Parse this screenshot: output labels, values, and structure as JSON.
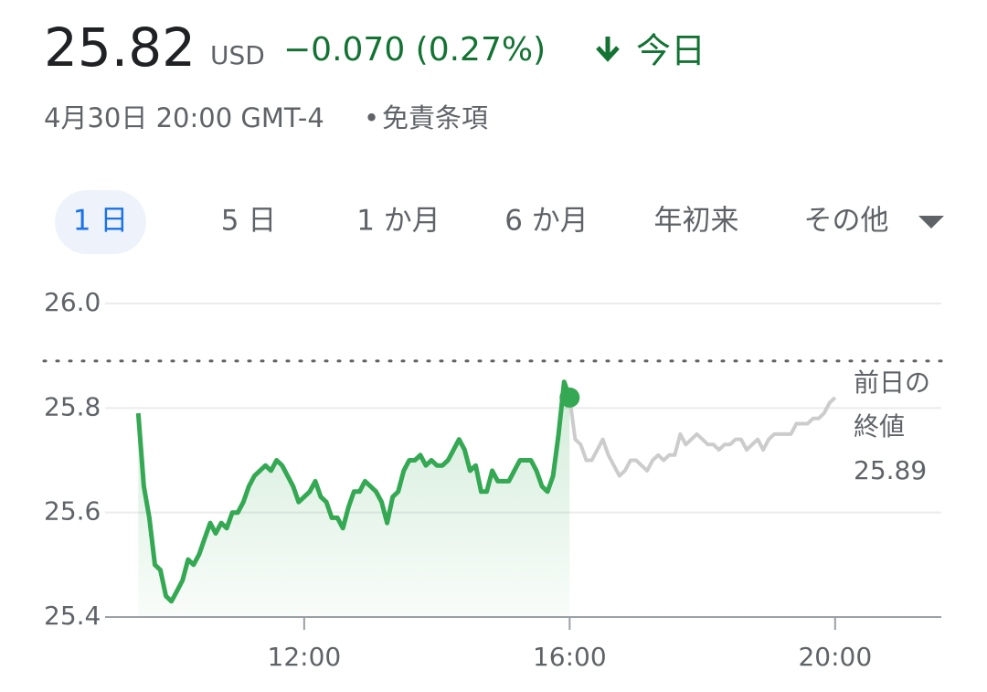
{
  "header": {
    "price": "25.82",
    "currency": "USD",
    "change": "−0.070 (0.27%)",
    "period": "今日",
    "date": "4月30日 20:00 GMT-4",
    "separator": "•",
    "disclaimer": "免責条項"
  },
  "tabs": {
    "items": [
      "1 日",
      "5 日",
      "1 か月",
      "6 か月",
      "年初来",
      "その他"
    ],
    "selected": 0
  },
  "chart_data": {
    "type": "line",
    "series": [
      {
        "name": "regular",
        "color": "#34a853",
        "x": [
          570,
          575,
          580,
          585,
          590,
          595,
          600,
          605,
          610,
          615,
          620,
          625,
          630,
          635,
          640,
          645,
          650,
          655,
          660,
          665,
          670,
          675,
          680,
          685,
          690,
          695,
          700,
          705,
          710,
          715,
          720,
          725,
          730,
          735,
          740,
          745,
          750,
          755,
          760,
          765,
          770,
          775,
          780,
          785,
          790,
          795,
          800,
          805,
          810,
          815,
          820,
          825,
          830,
          835,
          840,
          845,
          850,
          855,
          860,
          865,
          870,
          875,
          880,
          885,
          890,
          895,
          900,
          905,
          910,
          915,
          920,
          925,
          930,
          935,
          940,
          945,
          950,
          955,
          960
        ],
        "values": [
          25.79,
          25.65,
          25.59,
          25.5,
          25.49,
          25.44,
          25.43,
          25.45,
          25.47,
          25.51,
          25.5,
          25.52,
          25.55,
          25.58,
          25.56,
          25.58,
          25.57,
          25.6,
          25.6,
          25.62,
          25.65,
          25.67,
          25.68,
          25.69,
          25.68,
          25.7,
          25.69,
          25.67,
          25.65,
          25.62,
          25.63,
          25.64,
          25.66,
          25.63,
          25.62,
          25.59,
          25.59,
          25.57,
          25.61,
          25.64,
          25.64,
          25.66,
          25.65,
          25.64,
          25.62,
          25.58,
          25.63,
          25.64,
          25.68,
          25.7,
          25.7,
          25.71,
          25.69,
          25.7,
          25.69,
          25.69,
          25.7,
          25.72,
          25.74,
          25.72,
          25.68,
          25.69,
          25.64,
          25.64,
          25.68,
          25.66,
          25.66,
          25.66,
          25.68,
          25.7,
          25.7,
          25.7,
          25.68,
          25.65,
          25.64,
          25.67,
          25.75,
          25.85,
          25.82
        ]
      },
      {
        "name": "after-hours",
        "color": "#cccccc",
        "x": [
          960,
          965,
          970,
          975,
          980,
          985,
          990,
          995,
          1000,
          1005,
          1010,
          1015,
          1020,
          1025,
          1030,
          1035,
          1040,
          1045,
          1050,
          1055,
          1060,
          1065,
          1070,
          1075,
          1080,
          1085,
          1090,
          1095,
          1100,
          1105,
          1110,
          1115,
          1120,
          1125,
          1130,
          1135,
          1140,
          1145,
          1150,
          1155,
          1160,
          1165,
          1170,
          1175,
          1180,
          1185,
          1190,
          1195,
          1200
        ],
        "values": [
          25.82,
          25.74,
          25.73,
          25.7,
          25.7,
          25.72,
          25.74,
          25.71,
          25.69,
          25.67,
          25.68,
          25.7,
          25.7,
          25.69,
          25.68,
          25.7,
          25.71,
          25.7,
          25.71,
          25.71,
          25.75,
          25.73,
          25.74,
          25.75,
          25.74,
          25.73,
          25.73,
          25.72,
          25.73,
          25.73,
          25.74,
          25.74,
          25.72,
          25.73,
          25.74,
          25.72,
          25.74,
          25.75,
          25.75,
          25.75,
          25.75,
          25.77,
          25.77,
          25.77,
          25.78,
          25.78,
          25.79,
          25.81,
          25.82
        ]
      }
    ],
    "xlim": [
      540,
      1296
    ],
    "xticks": [
      {
        "value": 720,
        "label": "12:00"
      },
      {
        "value": 960,
        "label": "16:00"
      },
      {
        "value": 1200,
        "label": "20:00"
      }
    ],
    "ylim": [
      25.4,
      26.0
    ],
    "yticks": [
      25.4,
      25.6,
      25.8,
      {
        "value": 26.0,
        "label": "26.0"
      }
    ],
    "grid": true,
    "reference_line": {
      "value": 25.89,
      "label_lines": [
        "前日の",
        "終値"
      ]
    }
  }
}
